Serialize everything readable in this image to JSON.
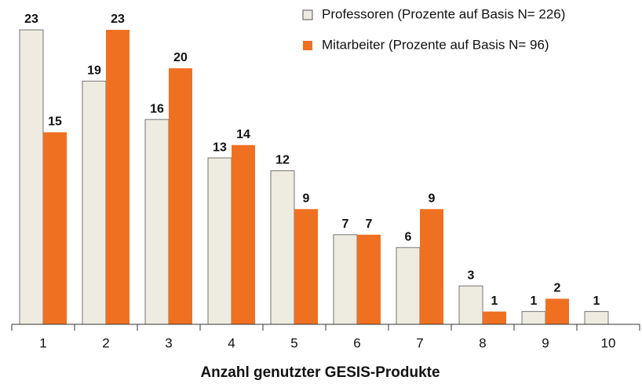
{
  "chart_data": {
    "type": "bar",
    "x_label": "Anzahl genutzter GESIS-Produkte",
    "categories": [
      "1",
      "2",
      "3",
      "4",
      "5",
      "6",
      "7",
      "8",
      "9",
      "10"
    ],
    "series": [
      {
        "name": "Professoren (Prozente auf Basis N= 226)",
        "color": "#eeebe0",
        "values": [
          23,
          19,
          16,
          13,
          12,
          7,
          6,
          3,
          1,
          1
        ]
      },
      {
        "name": "Mitarbeiter (Prozente auf Basis N= 96)",
        "color": "#f07022",
        "values": [
          15,
          23,
          20,
          14,
          9,
          7,
          9,
          1,
          2,
          null
        ]
      }
    ],
    "ylim": [
      0,
      23
    ],
    "legend": "upper right"
  }
}
